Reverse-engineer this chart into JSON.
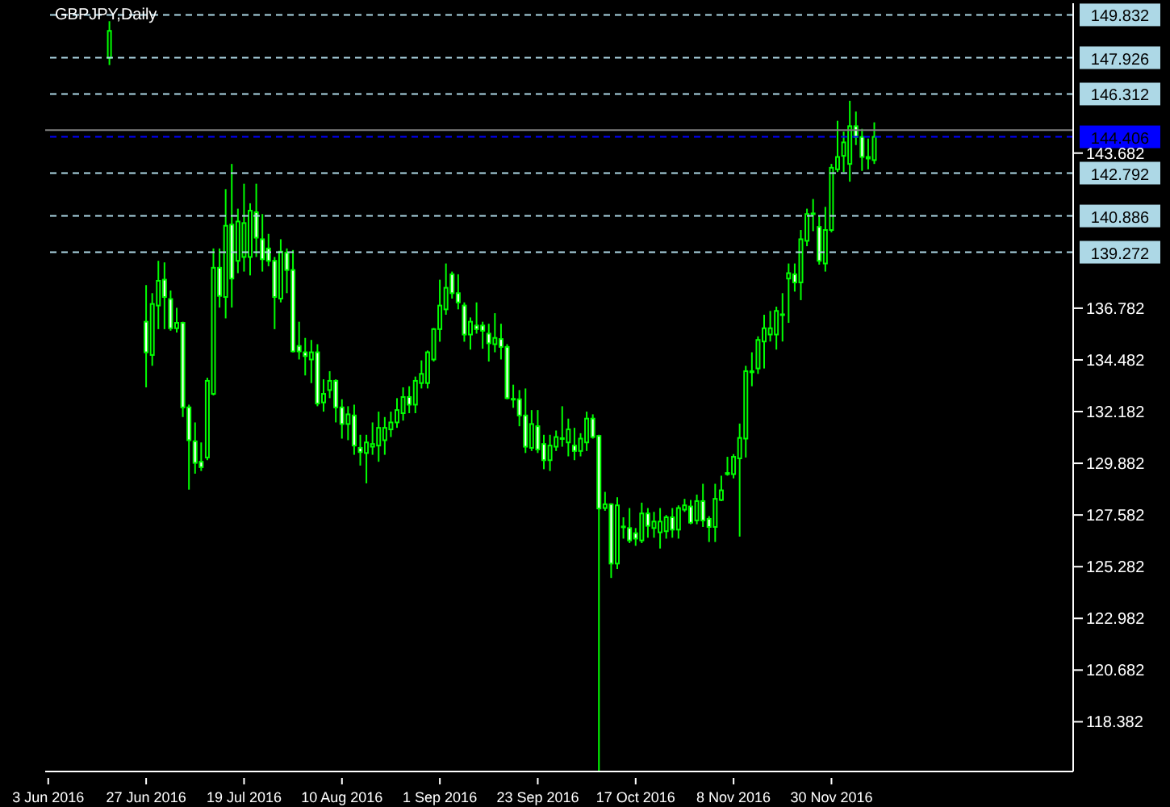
{
  "chart_data": {
    "type": "candlestick",
    "title": "GBPJPY,Daily",
    "color": "#00ff00",
    "categories": [
      "3 Jun 2016",
      null,
      null,
      null,
      null,
      null,
      null,
      null,
      null,
      null,
      null,
      null,
      null,
      null,
      null,
      null,
      "27 Jun 2016",
      null,
      null,
      null,
      null,
      null,
      null,
      null,
      null,
      null,
      null,
      null,
      null,
      null,
      null,
      null,
      "19 Jul 2016",
      null,
      null,
      null,
      null,
      null,
      null,
      null,
      null,
      null,
      null,
      null,
      null,
      null,
      null,
      null,
      "10 Aug 2016",
      null,
      null,
      null,
      null,
      null,
      null,
      null,
      null,
      null,
      null,
      null,
      null,
      null,
      null,
      null,
      "1 Sep 2016",
      null,
      null,
      null,
      null,
      null,
      null,
      null,
      null,
      null,
      null,
      null,
      null,
      null,
      null,
      null,
      "23 Sep 2016",
      null,
      null,
      null,
      null,
      null,
      null,
      null,
      null,
      null,
      null,
      null,
      null,
      null,
      null,
      null,
      "17 Oct 2016",
      null,
      null,
      null,
      null,
      null,
      null,
      null,
      null,
      null,
      null,
      null,
      null,
      null,
      null,
      null,
      "8 Nov 2016",
      null,
      null,
      null,
      null,
      null,
      null,
      null,
      null,
      null,
      null,
      null,
      null,
      null,
      null,
      null,
      "30 Nov 2016",
      null,
      null,
      null,
      null,
      null,
      null,
      null,
      null,
      null,
      null,
      null,
      null,
      null,
      null,
      null,
      null,
      null,
      null,
      null,
      null,
      null,
      null,
      null,
      null,
      null,
      null,
      null,
      null,
      null,
      null,
      null,
      null,
      null,
      null,
      null,
      null,
      null,
      null,
      null
    ],
    "ohlc": [
      null,
      null,
      null,
      null,
      null,
      null,
      null,
      null,
      null,
      null,
      [
        147.92,
        149.55,
        147.6,
        149.12
      ],
      null,
      null,
      null,
      null,
      null,
      [
        136.18,
        137.81,
        133.26,
        134.82
      ],
      [
        134.7,
        137.45,
        134.22,
        136.97
      ],
      [
        136.9,
        138.89,
        135.85,
        138.0
      ],
      [
        138.05,
        138.82,
        135.85,
        137.28
      ],
      [
        137.19,
        137.57,
        135.78,
        135.89
      ],
      [
        135.89,
        136.8,
        135.7,
        136.13
      ],
      [
        136.13,
        136.18,
        131.94,
        132.37
      ],
      [
        132.37,
        132.49,
        128.71,
        130.91
      ],
      [
        130.86,
        131.7,
        129.42,
        129.9
      ],
      [
        129.95,
        130.81,
        129.54,
        129.71
      ],
      [
        130.14,
        133.69,
        130.02,
        133.55
      ],
      [
        132.97,
        139.44,
        132.9,
        138.58
      ],
      [
        138.58,
        139.44,
        136.81,
        137.33
      ],
      [
        137.28,
        142.08,
        136.33,
        140.45
      ],
      [
        140.5,
        143.2,
        136.81,
        138.1
      ],
      [
        138.89,
        141.21,
        138.34,
        140.64
      ],
      [
        139.06,
        142.32,
        138.41,
        140.57
      ],
      [
        139.06,
        141.45,
        138.24,
        141.12
      ],
      [
        141.05,
        142.32,
        139.06,
        139.92
      ],
      [
        139.85,
        140.97,
        138.41,
        138.96
      ],
      [
        139.44,
        140.09,
        138.65,
        138.89
      ],
      [
        138.89,
        139.06,
        135.85,
        137.28
      ],
      [
        137.21,
        139.85,
        137.04,
        139.3
      ],
      [
        139.25,
        139.44,
        137.45,
        138.48
      ],
      [
        138.48,
        139.37,
        134.82,
        134.86
      ],
      [
        135.1,
        136.18,
        134.5,
        134.86
      ],
      [
        134.82,
        135.46,
        133.79,
        134.65
      ],
      [
        134.5,
        135.37,
        133.45,
        134.82
      ],
      [
        134.82,
        135.18,
        132.42,
        132.54
      ],
      [
        132.59,
        133.62,
        132.18,
        132.97
      ],
      [
        133.14,
        133.98,
        132.78,
        133.55
      ],
      [
        133.55,
        133.62,
        131.7,
        132.37
      ],
      [
        132.37,
        132.73,
        130.98,
        131.63
      ],
      [
        131.63,
        132.42,
        130.91,
        132.06
      ],
      [
        132.01,
        132.49,
        130.26,
        130.67
      ],
      [
        130.57,
        131.15,
        129.78,
        130.38
      ],
      [
        130.34,
        131.15,
        128.99,
        130.81
      ],
      [
        130.62,
        131.7,
        130.26,
        130.74
      ],
      [
        130.67,
        132.18,
        129.95,
        131.46
      ],
      [
        130.91,
        131.94,
        130.26,
        131.46
      ],
      [
        131.39,
        132.18,
        131.05,
        131.7
      ],
      [
        131.7,
        132.78,
        131.46,
        132.25
      ],
      [
        132.11,
        133.26,
        131.78,
        132.83
      ],
      [
        132.83,
        133.31,
        132.11,
        132.49
      ],
      [
        132.49,
        133.74,
        132.11,
        133.55
      ],
      [
        133.45,
        134.46,
        133.21,
        133.86
      ],
      [
        133.45,
        134.9,
        133.21,
        134.82
      ],
      [
        134.5,
        135.9,
        134.41,
        135.85
      ],
      [
        135.85,
        138.05,
        135.29,
        136.9
      ],
      [
        136.73,
        138.77,
        136.49,
        137.69
      ],
      [
        138.29,
        138.41,
        137.21,
        137.45
      ],
      [
        137.45,
        138.29,
        136.73,
        137.04
      ],
      [
        136.9,
        137.04,
        135.29,
        135.61
      ],
      [
        135.61,
        136.37,
        134.94,
        136.18
      ],
      [
        136.01,
        137.04,
        135.65,
        135.85
      ],
      [
        136.01,
        136.18,
        134.98,
        135.78
      ],
      [
        135.65,
        136.09,
        134.41,
        135.22
      ],
      [
        135.18,
        136.56,
        134.82,
        135.46
      ],
      [
        135.41,
        136.09,
        134.5,
        135.06
      ],
      [
        135.06,
        135.18,
        132.73,
        132.78
      ],
      [
        132.73,
        133.38,
        132.35,
        132.75
      ],
      [
        132.73,
        133.14,
        131.53,
        132.01
      ],
      [
        132.01,
        133.21,
        130.34,
        130.62
      ],
      [
        130.57,
        132.25,
        130.43,
        131.63
      ],
      [
        131.53,
        132.25,
        130.34,
        130.5
      ],
      [
        130.74,
        131.15,
        129.62,
        130.02
      ],
      [
        130.02,
        131.15,
        129.54,
        130.67
      ],
      [
        130.62,
        131.34,
        130.43,
        131.05
      ],
      [
        130.98,
        132.42,
        130.62,
        131.0
      ],
      [
        130.81,
        131.87,
        130.19,
        131.39
      ],
      [
        130.67,
        131.46,
        130.02,
        130.43
      ],
      [
        130.43,
        131.22,
        130.19,
        130.98
      ],
      [
        130.81,
        132.18,
        130.43,
        131.87
      ],
      [
        131.87,
        132.06,
        130.98,
        131.05
      ],
      [
        131.1,
        131.15,
        116.2,
        127.87
      ],
      [
        127.89,
        128.61,
        127.77,
        128.06
      ],
      [
        128.06,
        128.1,
        124.78,
        125.42
      ],
      [
        125.42,
        128.37,
        125.18,
        128.01
      ],
      [
        127.05,
        127.48,
        126.53,
        127.07
      ],
      [
        127.0,
        127.89,
        126.33,
        126.45
      ],
      [
        126.77,
        127.0,
        126.21,
        126.53
      ],
      [
        126.45,
        128.13,
        126.33,
        127.65
      ],
      [
        127.65,
        127.89,
        126.57,
        127.1
      ],
      [
        127.0,
        127.72,
        126.57,
        127.29
      ],
      [
        126.81,
        127.89,
        126.09,
        127.29
      ],
      [
        126.86,
        127.58,
        126.53,
        127.48
      ],
      [
        127.48,
        127.89,
        126.57,
        126.93
      ],
      [
        126.93,
        128.01,
        126.53,
        127.89
      ],
      [
        127.82,
        128.3,
        127.72,
        128.01
      ],
      [
        127.96,
        128.25,
        127.17,
        127.24
      ],
      [
        127.34,
        128.49,
        127.17,
        128.2
      ],
      [
        128.2,
        128.97,
        127.05,
        127.34
      ],
      [
        127.41,
        127.53,
        126.38,
        127.05
      ],
      [
        127.05,
        128.97,
        126.38,
        128.3
      ],
      [
        128.25,
        129.33,
        128.2,
        128.68
      ],
      [
        129.4,
        130.17,
        129.33,
        129.45
      ],
      [
        129.4,
        130.29,
        129.21,
        130.17
      ],
      [
        130.1,
        131.65,
        126.62,
        131.01
      ],
      [
        130.98,
        134.22,
        130.14,
        133.98
      ],
      [
        133.93,
        134.82,
        133.31,
        133.98
      ],
      [
        134.1,
        135.53,
        133.86,
        135.37
      ],
      [
        135.3,
        136.49,
        134.1,
        135.89
      ],
      [
        135.61,
        136.66,
        135.3,
        135.89
      ],
      [
        135.61,
        136.85,
        134.94,
        136.66
      ],
      [
        136.49,
        137.45,
        135.3,
        136.51
      ],
      [
        138.1,
        138.77,
        136.13,
        138.34
      ],
      [
        138.29,
        138.77,
        137.52,
        137.93
      ],
      [
        137.93,
        140.26,
        137.14,
        139.85
      ],
      [
        139.78,
        141.21,
        139.54,
        140.97
      ],
      [
        140.97,
        141.64,
        140.21,
        141.0
      ],
      [
        140.4,
        140.88,
        138.72,
        138.89
      ],
      [
        138.77,
        141.29,
        138.41,
        140.26
      ],
      [
        140.26,
        143.2,
        140.16,
        143.03
      ],
      [
        142.96,
        145.12,
        142.84,
        143.51
      ],
      [
        143.56,
        144.64,
        142.84,
        144.16
      ],
      [
        143.2,
        146.01,
        142.41,
        144.88
      ],
      [
        144.88,
        145.53,
        144.04,
        144.4
      ],
      [
        144.4,
        144.76,
        142.89,
        143.51
      ],
      [
        143.51,
        144.33,
        142.96,
        143.44
      ],
      [
        143.37,
        145.05,
        143.2,
        144.406
      ],
      null,
      null,
      null,
      null,
      null,
      null,
      null,
      null,
      null,
      null,
      null,
      null,
      null,
      null,
      null,
      null,
      null,
      null,
      null,
      null,
      null,
      null,
      null,
      null,
      null,
      null,
      null,
      null,
      null,
      null,
      null,
      null
    ],
    "ylim": [
      116.17,
      150.35
    ],
    "yticks": [
      118.382,
      120.682,
      122.982,
      125.282,
      127.582,
      129.882,
      132.182,
      134.482,
      136.782,
      143.682
    ],
    "ref_lines": [
      {
        "axis": "y",
        "value": 149.832,
        "label": "149.832",
        "color": "#add8e6",
        "line_style": "dashed"
      },
      {
        "axis": "y",
        "value": 147.926,
        "label": "147.926",
        "color": "#add8e6",
        "line_style": "dashed"
      },
      {
        "axis": "y",
        "value": 146.312,
        "label": "146.312",
        "color": "#add8e6",
        "line_style": "dashed"
      },
      {
        "axis": "y",
        "value": 144.7,
        "label": null,
        "color": "#808080",
        "line_style": "solid"
      },
      {
        "axis": "y",
        "value": 144.406,
        "label": "144.406",
        "color": "#0000ff",
        "line_style": "dashed"
      },
      {
        "axis": "y",
        "value": 142.792,
        "label": "142.792",
        "color": "#add8e6",
        "line_style": "dashed"
      },
      {
        "axis": "y",
        "value": 140.886,
        "label": "140.886",
        "color": "#add8e6",
        "line_style": "dashed"
      },
      {
        "axis": "y",
        "value": 139.272,
        "label": "139.272",
        "color": "#add8e6",
        "line_style": "dashed"
      }
    ]
  }
}
